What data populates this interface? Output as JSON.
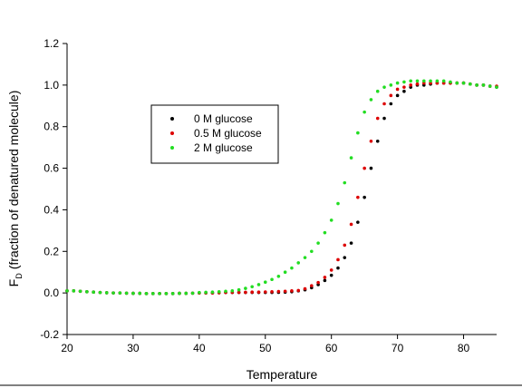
{
  "chart_data": {
    "type": "scatter",
    "x_label": "Temperature",
    "y_label": "F",
    "y_label_sub": "D",
    "y_label_rest": "(fraction of denatured molecule)",
    "xlim": [
      20,
      85
    ],
    "xticks": [
      20,
      30,
      40,
      50,
      60,
      70,
      80
    ],
    "ylim": [
      -0.2,
      1.2
    ],
    "yticks": [
      -0.2,
      {
        "value": 0,
        "label": "0.0"
      },
      0.2,
      0.4,
      0.6,
      0.8,
      {
        "value": 1,
        "label": "1.0"
      },
      1.2
    ],
    "x": [
      20,
      21,
      22,
      23,
      24,
      25,
      26,
      27,
      28,
      29,
      30,
      31,
      32,
      33,
      34,
      35,
      36,
      37,
      38,
      39,
      40,
      41,
      42,
      43,
      44,
      45,
      46,
      47,
      48,
      49,
      50,
      51,
      52,
      53,
      54,
      55,
      56,
      57,
      58,
      59,
      60,
      61,
      62,
      63,
      64,
      65,
      66,
      67,
      68,
      69,
      70,
      71,
      72,
      73,
      74,
      75,
      76,
      77,
      78,
      79,
      80,
      81,
      82,
      83,
      84,
      85
    ],
    "series": [
      {
        "name": "0 M glucose",
        "color": "#000000",
        "values": [
          0.01,
          0.01,
          0.008,
          0.006,
          0.004,
          0.002,
          0.001,
          0,
          0,
          -0.001,
          -0.002,
          -0.002,
          -0.003,
          -0.003,
          -0.003,
          -0.003,
          -0.003,
          -0.002,
          -0.002,
          -0.001,
          0,
          0,
          0,
          0.001,
          0.002,
          0.002,
          0.002,
          0.002,
          0.002,
          0.002,
          0.002,
          0.002,
          0.003,
          0.004,
          0.006,
          0.01,
          0.015,
          0.025,
          0.04,
          0.06,
          0.085,
          0.12,
          0.17,
          0.24,
          0.34,
          0.46,
          0.6,
          0.73,
          0.84,
          0.91,
          0.95,
          0.97,
          0.99,
          1.0,
          1.0,
          1.005,
          1.01,
          1.01,
          1.01,
          1.01,
          1.01,
          1.005,
          1.0,
          1.0,
          0.995,
          0.99
        ]
      },
      {
        "name": "0.5 M glucose",
        "color": "#dd0000",
        "values": [
          0.01,
          0.01,
          0.008,
          0.006,
          0.004,
          0.002,
          0.001,
          0,
          0,
          -0.001,
          -0.002,
          -0.002,
          -0.003,
          -0.003,
          -0.003,
          -0.003,
          -0.003,
          -0.002,
          -0.002,
          -0.001,
          0,
          0,
          0,
          0.001,
          0.002,
          0.003,
          0.003,
          0.003,
          0.004,
          0.004,
          0.005,
          0.006,
          0.007,
          0.008,
          0.01,
          0.012,
          0.02,
          0.035,
          0.05,
          0.075,
          0.11,
          0.16,
          0.23,
          0.33,
          0.46,
          0.6,
          0.73,
          0.84,
          0.91,
          0.95,
          0.98,
          0.99,
          1.0,
          1.005,
          1.01,
          1.01,
          1.01,
          1.01,
          1.01,
          1.01,
          1.01,
          1.005,
          1.0,
          1.0,
          0.995,
          0.995
        ]
      },
      {
        "name": "2 M glucose",
        "color": "#22dd22",
        "values": [
          0.01,
          0.01,
          0.008,
          0.006,
          0.004,
          0.002,
          0.001,
          0,
          0,
          -0.001,
          -0.002,
          -0.002,
          -0.003,
          -0.003,
          -0.003,
          -0.003,
          -0.003,
          -0.002,
          -0.002,
          -0.001,
          0.002,
          0.003,
          0.004,
          0.006,
          0.008,
          0.01,
          0.015,
          0.022,
          0.03,
          0.04,
          0.052,
          0.065,
          0.08,
          0.1,
          0.12,
          0.145,
          0.17,
          0.2,
          0.24,
          0.29,
          0.35,
          0.43,
          0.53,
          0.65,
          0.77,
          0.87,
          0.93,
          0.97,
          0.99,
          1.0,
          1.01,
          1.015,
          1.02,
          1.02,
          1.02,
          1.02,
          1.02,
          1.02,
          1.015,
          1.01,
          1.01,
          1.005,
          1.0,
          1.0,
          0.995,
          0.99
        ]
      }
    ]
  }
}
